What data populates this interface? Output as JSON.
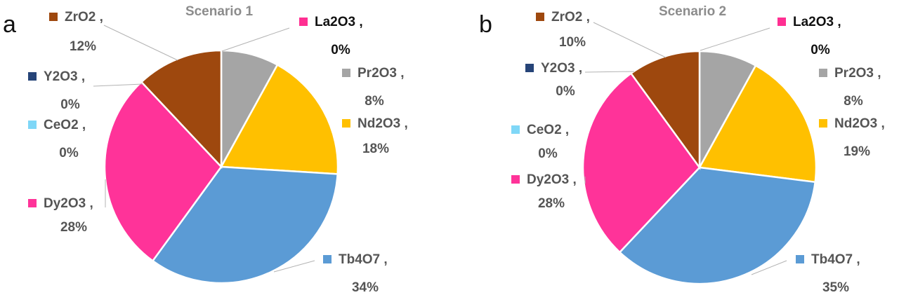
{
  "chart_data": [
    {
      "type": "pie",
      "panel": "a",
      "title": "Scenario 1",
      "series": [
        {
          "name": "La2O3",
          "value": 0,
          "value_label": "0%",
          "color": "#FF2F92"
        },
        {
          "name": "Pr2O3",
          "value": 8,
          "value_label": "8%",
          "color": "#A5A5A5"
        },
        {
          "name": "Nd2O3",
          "value": 18,
          "value_label": "18%",
          "color": "#FFC000"
        },
        {
          "name": "Tb4O7",
          "value": 34,
          "value_label": "34%",
          "color": "#5B9BD5"
        },
        {
          "name": "Dy2O3",
          "value": 28,
          "value_label": "28%",
          "color": "#FF3399"
        },
        {
          "name": "CeO2",
          "value": 0,
          "value_label": "0%",
          "color": "#7FD7F7"
        },
        {
          "name": "Y2O3",
          "value": 0,
          "value_label": "0%",
          "color": "#264478"
        },
        {
          "name": "ZrO2",
          "value": 12,
          "value_label": "12%",
          "color": "#9E480E"
        }
      ]
    },
    {
      "type": "pie",
      "panel": "b",
      "title": "Scenario 2",
      "series": [
        {
          "name": "La2O3",
          "value": 0,
          "value_label": "0%",
          "color": "#FF2F92"
        },
        {
          "name": "Pr2O3",
          "value": 8,
          "value_label": "8%",
          "color": "#A5A5A5"
        },
        {
          "name": "Nd2O3",
          "value": 19,
          "value_label": "19%",
          "color": "#FFC000"
        },
        {
          "name": "Tb4O7",
          "value": 35,
          "value_label": "35%",
          "color": "#5B9BD5"
        },
        {
          "name": "Dy2O3",
          "value": 28,
          "value_label": "28%",
          "color": "#FF3399"
        },
        {
          "name": "CeO2",
          "value": 0,
          "value_label": "0%",
          "color": "#7FD7F7"
        },
        {
          "name": "Y2O3",
          "value": 0,
          "value_label": "0%",
          "color": "#264478"
        },
        {
          "name": "ZrO2",
          "value": 10,
          "value_label": "10%",
          "color": "#9E480E"
        }
      ]
    }
  ]
}
